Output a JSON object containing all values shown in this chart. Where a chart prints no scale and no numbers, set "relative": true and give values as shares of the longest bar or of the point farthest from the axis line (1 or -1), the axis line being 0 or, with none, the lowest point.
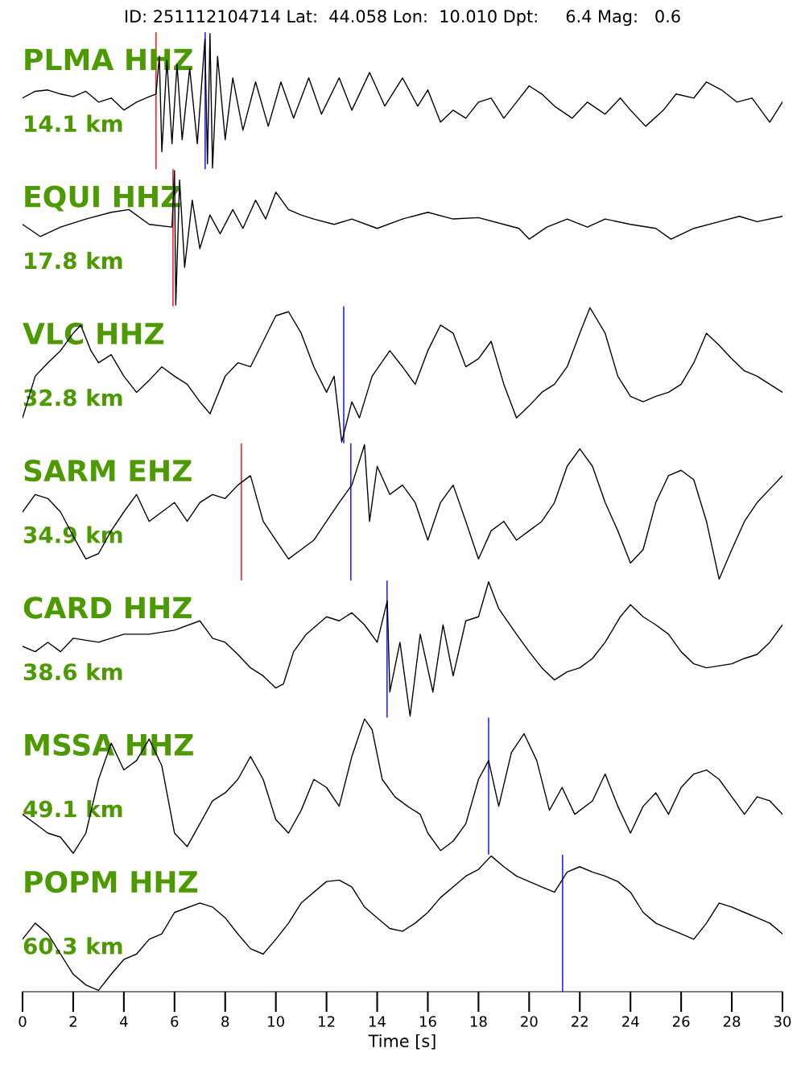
{
  "chart_data": [
    {
      "type": "line",
      "relative": true,
      "title": "ID: 251112104714 Lat:  44.058 Lon:  10.010 Dpt:     6.4 Mag:   0.6",
      "annotations": [
        "PLMA HHZ",
        "14.1 km"
      ],
      "xlim": [
        0,
        30
      ],
      "tick_labels": false,
      "ref_lines": [
        {
          "axis": "x",
          "value": 5.27,
          "color": "#ff0000"
        },
        {
          "axis": "x",
          "value": 7.21,
          "color": "#0000ff"
        }
      ],
      "x": [
        0,
        0.5,
        1,
        1.5,
        2,
        2.5,
        3,
        3.5,
        4,
        4.5,
        5,
        5.27,
        5.4,
        5.5,
        5.7,
        5.9,
        6.1,
        6.3,
        6.6,
        6.9,
        7.2,
        7.3,
        7.4,
        7.5,
        7.7,
        8,
        8.3,
        8.7,
        9.2,
        9.7,
        10.2,
        10.7,
        11.3,
        11.8,
        12.5,
        13,
        13.7,
        14.3,
        15,
        15.6,
        16,
        16.5,
        17,
        17.5,
        18,
        18.5,
        19,
        19.5,
        20,
        20.5,
        21,
        21.7,
        22.3,
        23,
        23.6,
        24,
        24.6,
        25.3,
        25.8,
        26.5,
        27,
        27.6,
        28.2,
        28.8,
        29.5,
        30
      ],
      "series": [
        {
          "color": "#000000",
          "values": [
            0.52,
            0.57,
            0.58,
            0.55,
            0.53,
            0.57,
            0.49,
            0.52,
            0.43,
            0.49,
            0.53,
            0.55,
            0.83,
            0.12,
            0.8,
            0.18,
            0.77,
            0.21,
            0.74,
            0.18,
            0.96,
            0.03,
            1.0,
            0,
            0.83,
            0.21,
            0.67,
            0.28,
            0.64,
            0.31,
            0.64,
            0.37,
            0.67,
            0.4,
            0.67,
            0.43,
            0.71,
            0.46,
            0.67,
            0.46,
            0.58,
            0.34,
            0.43,
            0.37,
            0.49,
            0.52,
            0.37,
            0.49,
            0.61,
            0.55,
            0.46,
            0.37,
            0.49,
            0.4,
            0.52,
            0.43,
            0.31,
            0.43,
            0.55,
            0.52,
            0.64,
            0.58,
            0.49,
            0.52,
            0.34,
            0.49
          ]
        }
      ]
    },
    {
      "type": "line",
      "relative": true,
      "annotations": [
        "EQUI HHZ",
        "17.8 km"
      ],
      "xlim": [
        0,
        30
      ],
      "tick_labels": false,
      "ref_lines": [
        {
          "axis": "x",
          "value": 5.94,
          "color": "#ff0000"
        }
      ],
      "x": [
        0,
        0.7,
        1.5,
        2.5,
        3.5,
        4.2,
        5,
        5.9,
        6,
        6.05,
        6.2,
        6.4,
        6.7,
        7,
        7.4,
        7.8,
        8.3,
        8.7,
        9.2,
        9.6,
        10,
        10.5,
        11,
        11.5,
        12.3,
        13,
        14,
        15,
        16,
        17,
        18,
        19,
        19.6,
        20,
        20.7,
        21.5,
        22.3,
        23,
        24,
        25,
        25.6,
        26.5,
        27.5,
        28.3,
        29,
        30
      ],
      "series": [
        {
          "color": "#000000",
          "values": [
            0.6,
            0.51,
            0.58,
            0.64,
            0.69,
            0.71,
            0.6,
            0.58,
            1.0,
            0,
            0.93,
            0.28,
            0.78,
            0.42,
            0.67,
            0.53,
            0.71,
            0.57,
            0.78,
            0.64,
            0.84,
            0.71,
            0.67,
            0.64,
            0.6,
            0.64,
            0.57,
            0.64,
            0.69,
            0.64,
            0.65,
            0.6,
            0.57,
            0.49,
            0.58,
            0.64,
            0.58,
            0.64,
            0.6,
            0.57,
            0.49,
            0.57,
            0.62,
            0.66,
            0.62,
            0.66
          ]
        }
      ]
    },
    {
      "type": "line",
      "relative": true,
      "annotations": [
        "VLC HHZ",
        "32.8 km"
      ],
      "xlim": [
        0,
        30
      ],
      "tick_labels": false,
      "ref_lines": [
        {
          "axis": "x",
          "value": 12.68,
          "color": "#0000ff"
        }
      ],
      "x": [
        0,
        0.5,
        1,
        1.5,
        2,
        2.3,
        2.7,
        3,
        3.5,
        4,
        4.5,
        5,
        5.5,
        6,
        6.5,
        7,
        7.4,
        8,
        8.5,
        9,
        9.5,
        10,
        10.5,
        11,
        11.5,
        12,
        12.3,
        12.6,
        13,
        13.3,
        13.8,
        14.5,
        15,
        15.5,
        16,
        16.5,
        17,
        17.5,
        18,
        18.5,
        19,
        19.5,
        20,
        20.5,
        21,
        21.5,
        22,
        22.4,
        23,
        23.5,
        24,
        24.5,
        25,
        25.5,
        26,
        26.5,
        27,
        27.5,
        28,
        28.5,
        29,
        29.5,
        30
      ],
      "series": [
        {
          "color": "#000000",
          "values": [
            0.18,
            0.49,
            0.59,
            0.68,
            0.81,
            0.87,
            0.68,
            0.59,
            0.65,
            0.49,
            0.37,
            0.46,
            0.56,
            0.49,
            0.43,
            0.3,
            0.21,
            0.49,
            0.59,
            0.56,
            0.75,
            0.94,
            0.97,
            0.81,
            0.56,
            0.37,
            0.49,
            0,
            0.3,
            0.18,
            0.49,
            0.68,
            0.56,
            0.43,
            0.68,
            0.87,
            0.81,
            0.56,
            0.62,
            0.75,
            0.43,
            0.18,
            0.27,
            0.37,
            0.43,
            0.56,
            0.81,
            1.0,
            0.81,
            0.49,
            0.34,
            0.3,
            0.34,
            0.37,
            0.43,
            0.59,
            0.81,
            0.72,
            0.62,
            0.53,
            0.49,
            0.43,
            0.37
          ]
        }
      ]
    },
    {
      "type": "line",
      "relative": true,
      "annotations": [
        "SARM EHZ",
        "34.9 km"
      ],
      "xlim": [
        0,
        30
      ],
      "tick_labels": false,
      "ref_lines": [
        {
          "axis": "x",
          "value": 8.64,
          "color": "#ff0000"
        },
        {
          "axis": "x",
          "value": 12.96,
          "color": "#0000ff"
        }
      ],
      "x": [
        0,
        0.5,
        1,
        1.5,
        2,
        2.5,
        3,
        3.5,
        4,
        4.5,
        5,
        5.5,
        6,
        6.5,
        7,
        7.5,
        8,
        8.5,
        9,
        9.5,
        10,
        10.5,
        11,
        11.5,
        12,
        12.5,
        13,
        13.5,
        13.7,
        14,
        14.5,
        15,
        15.5,
        16,
        16.5,
        17,
        17.5,
        18,
        18.5,
        19,
        19.5,
        20,
        20.5,
        21,
        21.5,
        22,
        22.5,
        23,
        23.5,
        24,
        24.5,
        25,
        25.5,
        26,
        26.5,
        27,
        27.5,
        28,
        28.5,
        29,
        29.5,
        30
      ],
      "series": [
        {
          "color": "#000000",
          "values": [
            0.5,
            0.63,
            0.6,
            0.5,
            0.32,
            0.15,
            0.19,
            0.36,
            0.5,
            0.63,
            0.43,
            0.5,
            0.57,
            0.43,
            0.57,
            0.63,
            0.6,
            0.7,
            0.77,
            0.43,
            0.29,
            0.15,
            0.22,
            0.29,
            0.43,
            0.57,
            0.7,
            1.0,
            0.43,
            0.84,
            0.63,
            0.7,
            0.57,
            0.29,
            0.57,
            0.7,
            0.43,
            0.15,
            0.36,
            0.43,
            0.29,
            0.36,
            0.43,
            0.57,
            0.84,
            0.97,
            0.84,
            0.57,
            0.36,
            0.12,
            0.22,
            0.57,
            0.77,
            0.81,
            0.74,
            0.43,
            0,
            0.22,
            0.43,
            0.57,
            0.67,
            0.77
          ]
        }
      ]
    },
    {
      "type": "line",
      "relative": true,
      "annotations": [
        "CARD HHZ",
        "38.6 km"
      ],
      "xlim": [
        0,
        30
      ],
      "tick_labels": false,
      "ref_lines": [
        {
          "axis": "x",
          "value": 14.39,
          "color": "#0000ff"
        }
      ],
      "x": [
        0,
        0.5,
        1,
        1.5,
        2,
        3,
        4,
        5,
        6,
        7,
        7.5,
        8,
        8.5,
        9,
        9.5,
        10,
        10.3,
        10.7,
        11.2,
        12,
        12.5,
        13,
        13.5,
        14,
        14.4,
        14.5,
        14.9,
        15.3,
        15.7,
        16.2,
        16.6,
        17,
        17.5,
        18,
        18.4,
        18.8,
        19.5,
        20,
        20.5,
        21,
        21.5,
        22,
        22.5,
        23,
        23.6,
        24,
        24.5,
        25,
        25.5,
        26,
        26.5,
        27,
        28,
        28.5,
        29,
        29.5,
        30
      ],
      "series": [
        {
          "color": "#000000",
          "values": [
            0.52,
            0.48,
            0.55,
            0.48,
            0.58,
            0.55,
            0.61,
            0.61,
            0.64,
            0.71,
            0.58,
            0.55,
            0.46,
            0.36,
            0.3,
            0.21,
            0.24,
            0.48,
            0.61,
            0.74,
            0.71,
            0.77,
            0.68,
            0.55,
            0.86,
            0.18,
            0.55,
            0,
            0.61,
            0.18,
            0.68,
            0.3,
            0.71,
            0.74,
            1.0,
            0.8,
            0.61,
            0.48,
            0.36,
            0.27,
            0.33,
            0.36,
            0.43,
            0.55,
            0.74,
            0.83,
            0.74,
            0.68,
            0.61,
            0.48,
            0.39,
            0.36,
            0.39,
            0.43,
            0.46,
            0.55,
            0.68
          ]
        }
      ]
    },
    {
      "type": "line",
      "relative": true,
      "annotations": [
        "MSSA HHZ",
        "49.1 km"
      ],
      "xlim": [
        0,
        30
      ],
      "tick_labels": false,
      "ref_lines": [
        {
          "axis": "x",
          "value": 18.4,
          "color": "#0000ff"
        }
      ],
      "x": [
        0,
        0.5,
        1,
        1.5,
        2,
        2.5,
        3,
        3.5,
        4,
        4.5,
        5,
        5.5,
        6,
        6.5,
        7,
        7.5,
        8,
        8.5,
        9,
        9.5,
        10,
        10.5,
        11,
        11.5,
        12,
        12.5,
        13,
        13.5,
        13.8,
        14.2,
        14.7,
        15.2,
        15.7,
        16,
        16.5,
        17,
        17.5,
        18,
        18.4,
        18.8,
        19.3,
        19.8,
        20.3,
        20.8,
        21.3,
        21.8,
        22.5,
        23,
        23.5,
        24,
        24.5,
        25,
        25.5,
        26,
        26.5,
        27,
        27.5,
        28,
        28.5,
        29,
        29.5,
        30
      ],
      "series": [
        {
          "color": "#000000",
          "values": [
            0.29,
            0.22,
            0.15,
            0.12,
            0,
            0.15,
            0.55,
            0.82,
            0.62,
            0.69,
            0.85,
            0.65,
            0.15,
            0.05,
            0.22,
            0.39,
            0.45,
            0.55,
            0.72,
            0.55,
            0.25,
            0.15,
            0.32,
            0.55,
            0.49,
            0.35,
            0.72,
            1.0,
            0.92,
            0.55,
            0.42,
            0.35,
            0.29,
            0.15,
            0.02,
            0.09,
            0.22,
            0.55,
            0.69,
            0.35,
            0.75,
            0.89,
            0.69,
            0.32,
            0.49,
            0.29,
            0.39,
            0.59,
            0.35,
            0.15,
            0.35,
            0.45,
            0.29,
            0.49,
            0.59,
            0.62,
            0.55,
            0.42,
            0.29,
            0.42,
            0.39,
            0.29
          ]
        }
      ]
    },
    {
      "type": "line",
      "relative": true,
      "annotations": [
        "POPM HHZ",
        "60.3 km"
      ],
      "xlim": [
        0,
        30
      ],
      "xlabel": "Time [s]",
      "xticks": [
        0,
        2,
        4,
        6,
        8,
        10,
        12,
        14,
        16,
        18,
        20,
        22,
        24,
        26,
        28,
        30
      ],
      "ref_lines": [
        {
          "axis": "x",
          "value": 21.32,
          "color": "#0000ff"
        }
      ],
      "x": [
        0,
        0.5,
        1,
        1.5,
        2,
        2.5,
        3,
        3.5,
        4,
        4.5,
        5,
        5.5,
        6,
        7,
        7.5,
        8,
        8.5,
        9,
        9.5,
        10,
        10.5,
        11,
        12,
        12.5,
        13,
        13.5,
        14,
        14.5,
        15,
        15.5,
        16,
        16.5,
        17,
        17.5,
        18,
        18.5,
        19,
        19.5,
        20,
        20.5,
        21,
        21.5,
        22,
        22.5,
        23,
        23.5,
        24,
        24.5,
        25,
        25.5,
        26,
        26.5,
        27,
        27.5,
        28,
        28.5,
        29,
        29.5,
        30
      ],
      "series": [
        {
          "color": "#000000",
          "values": [
            0.38,
            0.5,
            0.42,
            0.27,
            0.12,
            0.04,
            0,
            0.12,
            0.23,
            0.27,
            0.38,
            0.42,
            0.58,
            0.65,
            0.62,
            0.54,
            0.42,
            0.31,
            0.27,
            0.38,
            0.5,
            0.65,
            0.81,
            0.82,
            0.77,
            0.62,
            0.54,
            0.46,
            0.44,
            0.5,
            0.58,
            0.69,
            0.77,
            0.85,
            0.9,
            1.0,
            0.92,
            0.85,
            0.81,
            0.77,
            0.73,
            0.88,
            0.92,
            0.88,
            0.85,
            0.81,
            0.73,
            0.58,
            0.5,
            0.46,
            0.42,
            0.38,
            0.5,
            0.65,
            0.62,
            0.58,
            0.54,
            0.5,
            0.42
          ]
        }
      ]
    }
  ]
}
